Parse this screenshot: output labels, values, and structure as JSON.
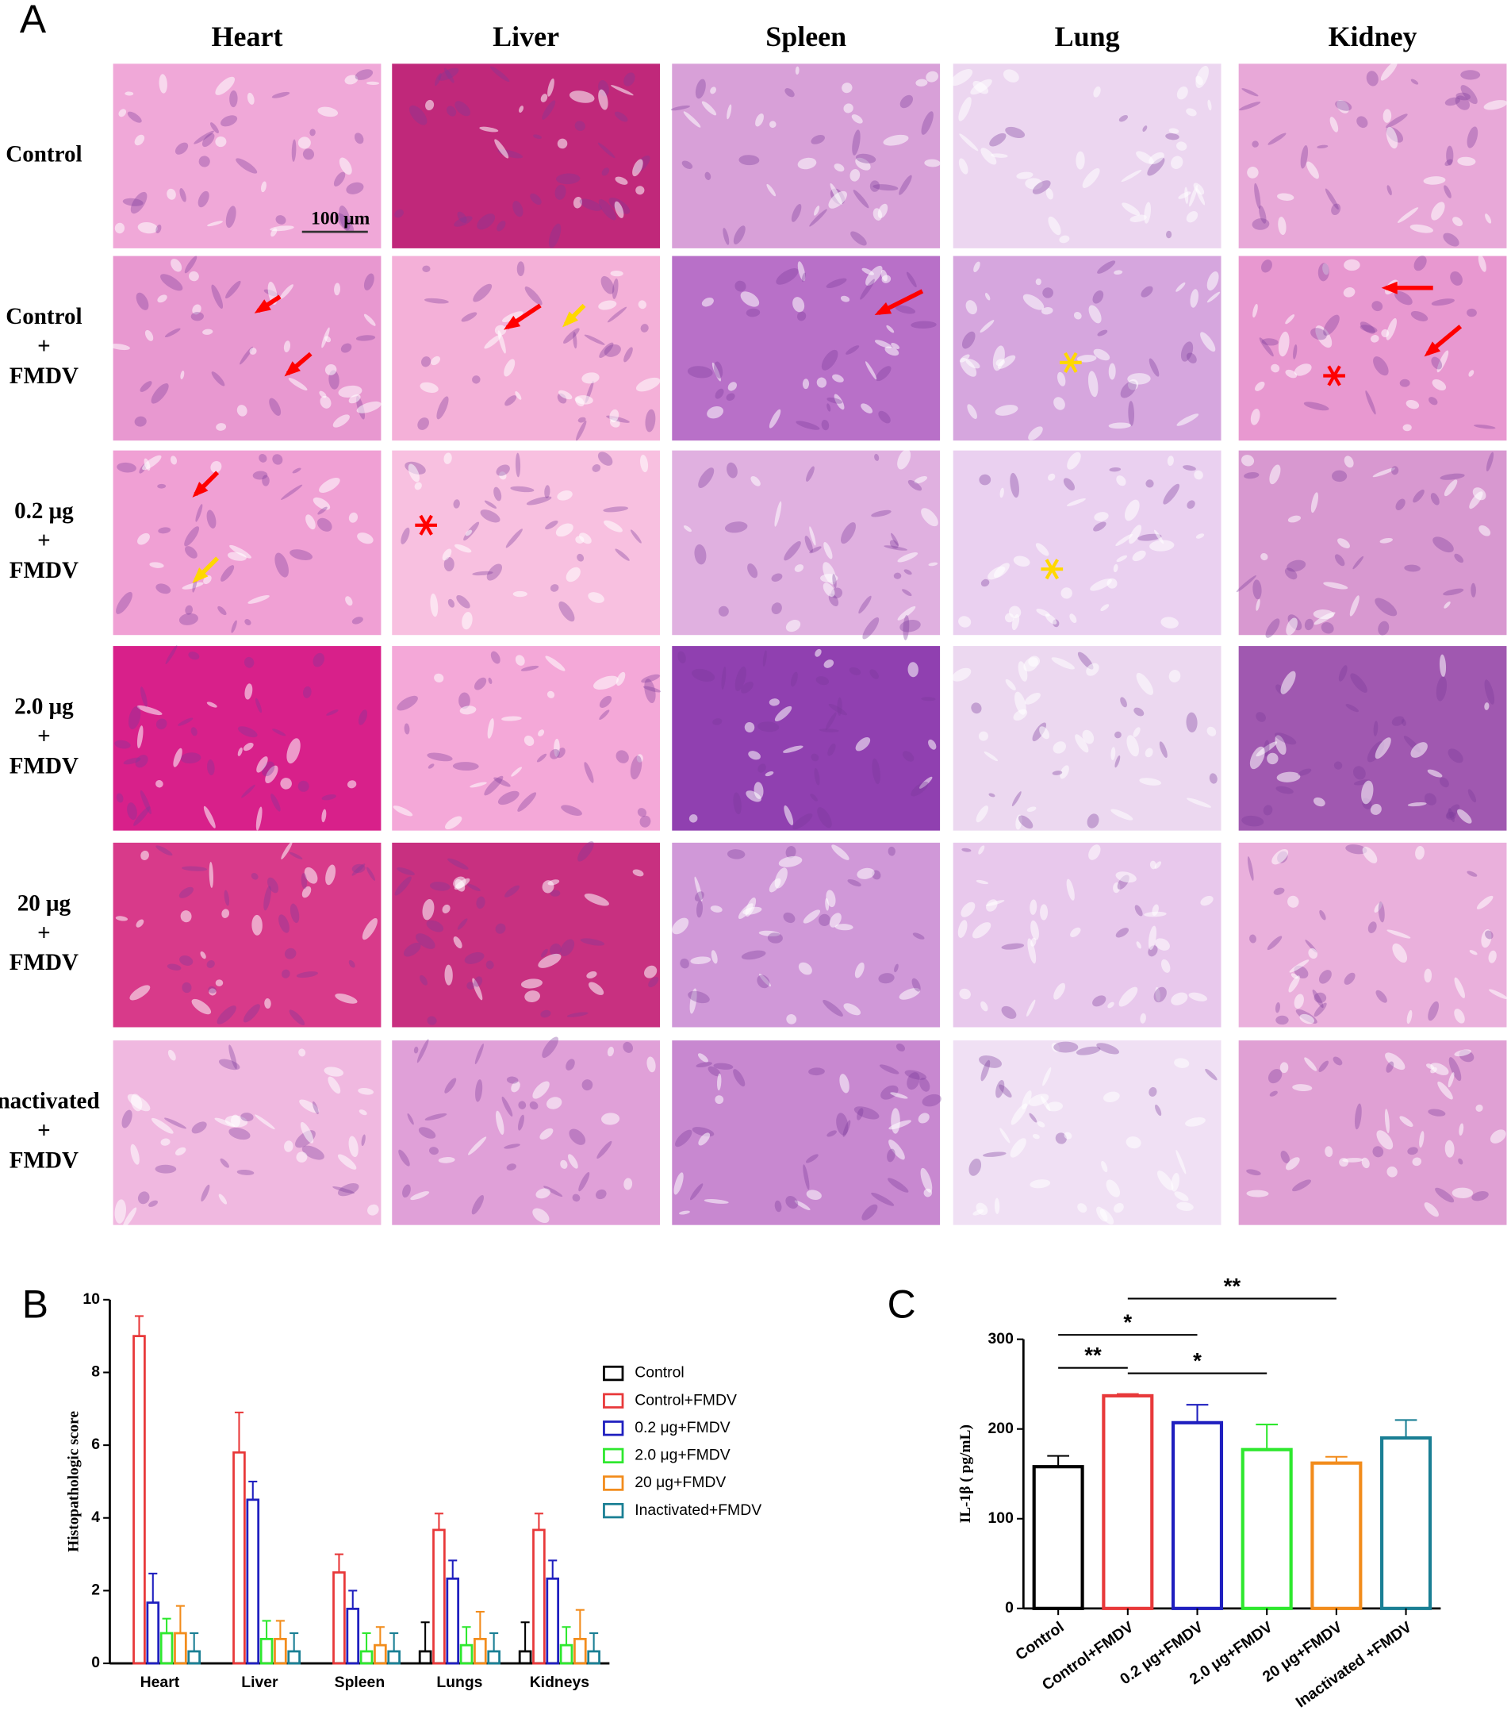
{
  "panel_a": {
    "label": "A",
    "columns": [
      "Heart",
      "Liver",
      "Spleen",
      "Lung",
      "Kidney"
    ],
    "rows": [
      [
        "Control"
      ],
      [
        "Control",
        "+",
        "FMDV"
      ],
      [
        "0.2 μg",
        "+",
        "FMDV"
      ],
      [
        "2.0 μg",
        "+",
        "FMDV"
      ],
      [
        "20 μg",
        "+",
        "FMDV"
      ],
      [
        "Inactivated",
        "+",
        "FMDV"
      ]
    ],
    "scale_bar": "100 μm"
  },
  "chart_data": [
    {
      "type": "bar",
      "label": "B",
      "ylabel": "Histopathologic score",
      "categories": [
        "Heart",
        "Liver",
        "Spleen",
        "Lungs",
        "Kidneys"
      ],
      "series": [
        {
          "name": "Control",
          "color": "#000000",
          "values": [
            0,
            0,
            0,
            0.33,
            0.33
          ],
          "errors": [
            0,
            0,
            0,
            0.8,
            0.8
          ]
        },
        {
          "name": "Control+FMDV",
          "color": "#e8393a",
          "values": [
            9,
            5.8,
            2.5,
            3.67,
            3.67
          ],
          "errors": [
            0.55,
            1.1,
            0.5,
            0.45,
            0.45
          ]
        },
        {
          "name": "0.2 μg+FMDV",
          "color": "#1f1fbf",
          "values": [
            1.67,
            4.5,
            1.5,
            2.33,
            2.33
          ],
          "errors": [
            0.8,
            0.5,
            0.5,
            0.5,
            0.5
          ]
        },
        {
          "name": "2.0 μg+FMDV",
          "color": "#2ee82e",
          "values": [
            0.83,
            0.67,
            0.33,
            0.5,
            0.5
          ],
          "errors": [
            0.4,
            0.5,
            0.5,
            0.5,
            0.5
          ]
        },
        {
          "name": "20 μg+FMDV",
          "color": "#f28c1c",
          "values": [
            0.83,
            0.67,
            0.5,
            0.67,
            0.67
          ],
          "errors": [
            0.75,
            0.5,
            0.5,
            0.75,
            0.8
          ]
        },
        {
          "name": "Inactivated+FMDV",
          "color": "#1a7f94",
          "values": [
            0.33,
            0.33,
            0.33,
            0.33,
            0.33
          ],
          "errors": [
            0.5,
            0.5,
            0.5,
            0.5,
            0.5
          ]
        }
      ],
      "ylim": [
        0,
        10
      ],
      "yticks": [
        0,
        2,
        4,
        6,
        8,
        10
      ]
    },
    {
      "type": "bar",
      "label": "C",
      "ylabel": "IL-1β ( pg/mL)",
      "categories": [
        "Control",
        "Control+FMDV",
        "0.2 μg+FMDV",
        "2.0 μg+FMDV",
        "20 μg+FMDV",
        "Inactivated +FMDV"
      ],
      "values": [
        158,
        237,
        207,
        177,
        162,
        190
      ],
      "errors": [
        12,
        2,
        20,
        28,
        7,
        20
      ],
      "colors": [
        "#000000",
        "#e8393a",
        "#1f1fbf",
        "#2ee82e",
        "#f28c1c",
        "#1a7f94"
      ],
      "ylim": [
        0,
        300
      ],
      "yticks": [
        0,
        100,
        200,
        300
      ],
      "annotations": [
        {
          "text": "**",
          "pair": [
            0,
            1
          ]
        },
        {
          "text": "*",
          "pair": [
            1,
            3
          ]
        },
        {
          "text": "*",
          "pair": [
            0,
            2
          ]
        },
        {
          "text": "**",
          "pair": [
            1,
            4
          ]
        }
      ]
    }
  ]
}
